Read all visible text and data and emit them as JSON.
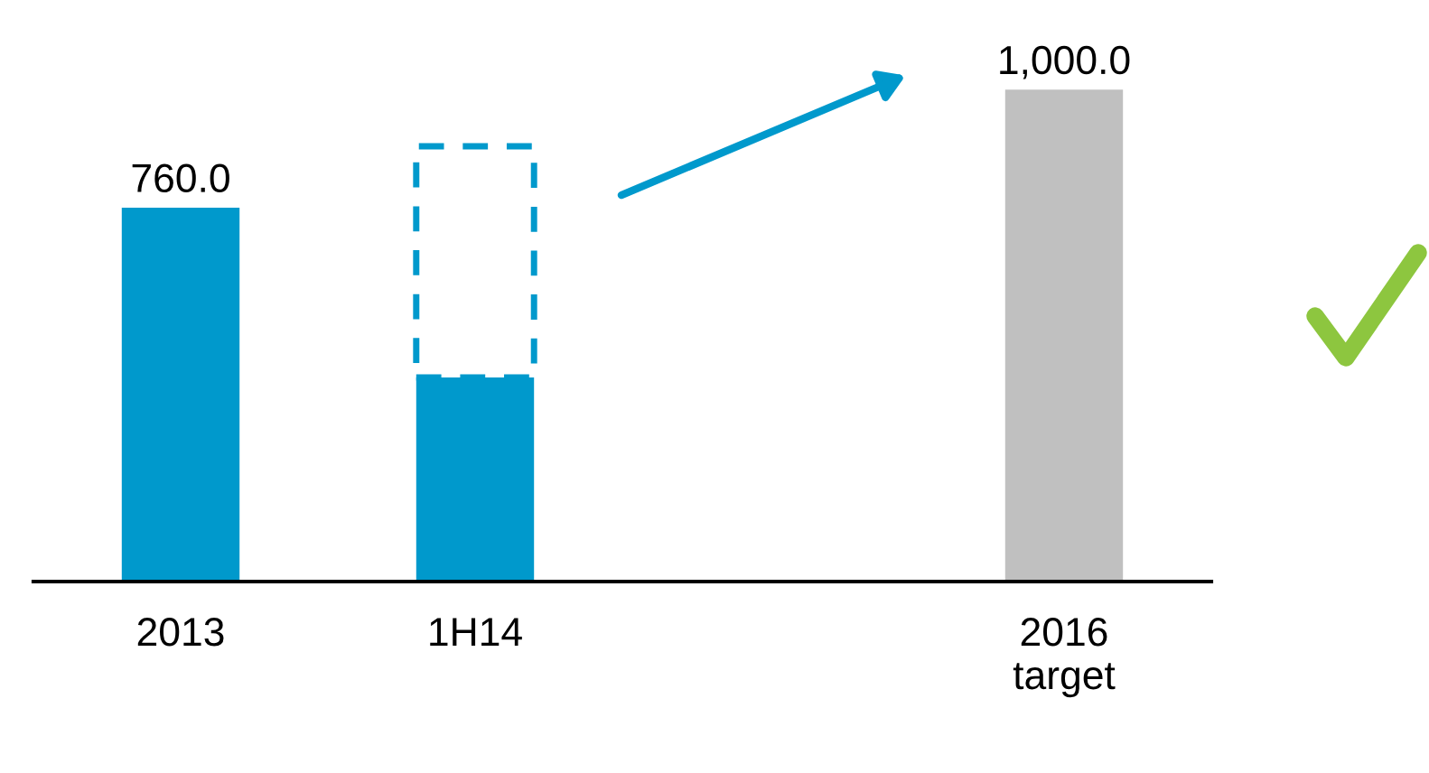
{
  "chart_data": {
    "type": "bar",
    "stacked": true,
    "categories": [
      "2013",
      "1H14",
      null,
      "2016\ntarget"
    ],
    "series": [
      {
        "colors": [
          "#0099cc",
          "#0099cc",
          null,
          "#c0c0c0"
        ],
        "values": [
          760,
          415,
          null,
          1000
        ],
        "value_labels": [
          "760.0",
          null,
          null,
          "1,000.0"
        ]
      },
      {
        "color": "#0099cc",
        "line_style": "dashed",
        "values": [
          null,
          470,
          null,
          null
        ]
      }
    ],
    "tick_labels": "x",
    "grid": false,
    "legend": false
  }
}
